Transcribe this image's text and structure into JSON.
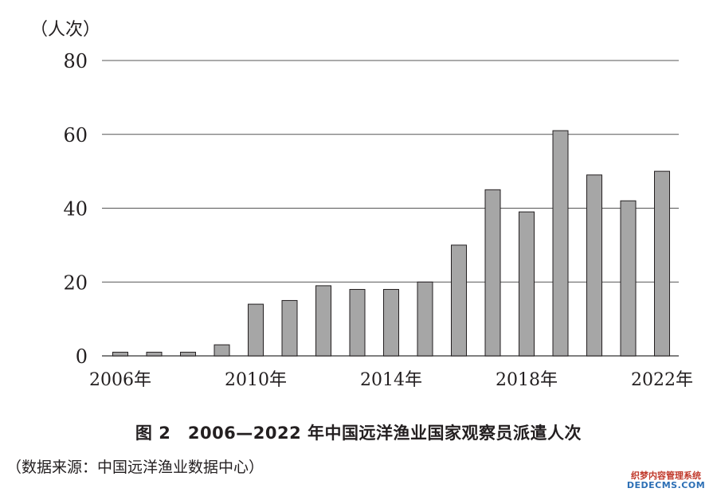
{
  "chart_data": {
    "type": "bar",
    "unit_label": "（人次）",
    "x": [
      2006,
      2007,
      2008,
      2009,
      2010,
      2011,
      2012,
      2013,
      2014,
      2015,
      2016,
      2017,
      2018,
      2019,
      2020,
      2021,
      2022
    ],
    "values": [
      1,
      1,
      1,
      3,
      14,
      15,
      19,
      18,
      18,
      20,
      30,
      45,
      39,
      61,
      49,
      42,
      50
    ],
    "x_tick_labels": [
      {
        "year": 2006,
        "label": "2006年"
      },
      {
        "year": 2010,
        "label": "2010年"
      },
      {
        "year": 2014,
        "label": "2014年"
      },
      {
        "year": 2018,
        "label": "2018年"
      },
      {
        "year": 2022,
        "label": "2022年"
      }
    ],
    "y_ticks": [
      0,
      20,
      40,
      60,
      80
    ],
    "ylim": [
      0,
      80
    ],
    "grid": true,
    "bar_color": "#a6a6a6",
    "bar_stroke": "#231f20",
    "grid_color": "#555555"
  },
  "caption": "图 2　2006—2022 年中国远洋渔业国家观察员派遣人次",
  "source": "（数据来源：中国远洋渔业数据中心）",
  "watermark": {
    "line1": "织梦内容管理系统",
    "line2": "DEDECMS.COM"
  }
}
